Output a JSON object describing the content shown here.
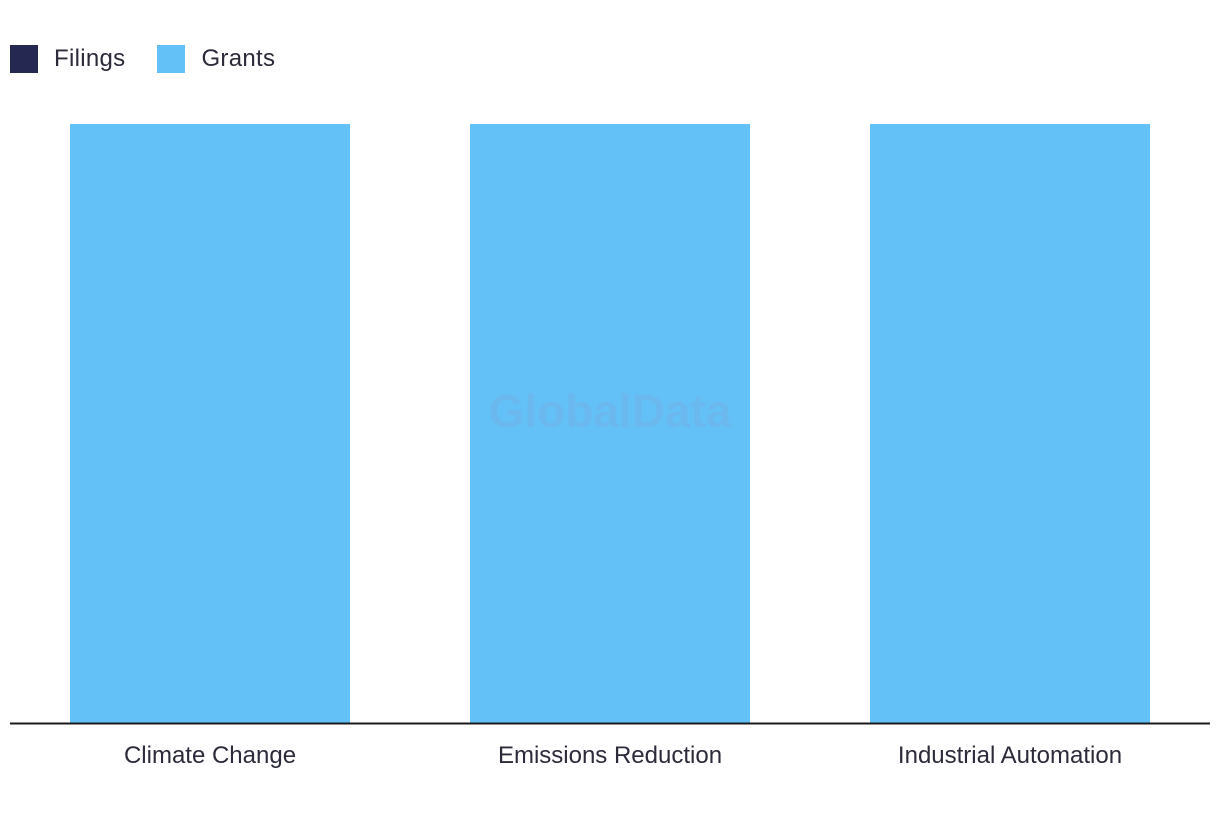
{
  "legend": [
    {
      "label": "Filings",
      "color": "#252850"
    },
    {
      "label": "Grants",
      "color": "#63c1f8"
    }
  ],
  "watermark": "GlobalData",
  "chart_data": {
    "type": "bar",
    "title": "",
    "xlabel": "",
    "ylabel": "",
    "categories": [
      "Climate Change",
      "Emissions Reduction",
      "Industrial Automation"
    ],
    "series": [
      {
        "name": "Filings",
        "values": [
          0,
          0,
          0
        ],
        "color": "#252850"
      },
      {
        "name": "Grants",
        "values": [
          1,
          1,
          1
        ],
        "color": "#63c1f8"
      }
    ],
    "ylim": [
      0,
      1
    ],
    "grid": false,
    "legend_position": "top-left"
  }
}
